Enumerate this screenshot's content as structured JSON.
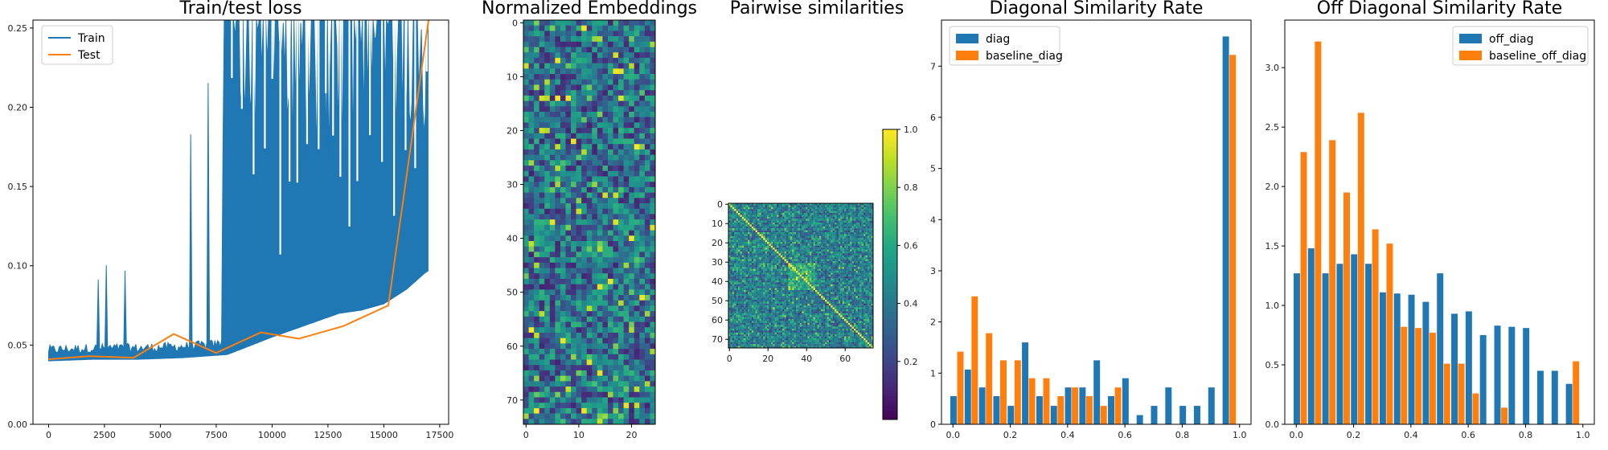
{
  "colors": {
    "train": "#1f77b4",
    "test": "#ff7f0e",
    "frame": "#000000"
  },
  "chart_data": [
    {
      "type": "line",
      "title": "Train/test loss",
      "xlim": [
        -700,
        17900
      ],
      "ylim": [
        0,
        0.255
      ],
      "x_ticks": [
        0,
        2500,
        5000,
        7500,
        10000,
        12500,
        15000,
        17500
      ],
      "y_ticks": [
        0.0,
        0.05,
        0.1,
        0.15,
        0.2,
        0.25
      ],
      "x_tick_labels": [
        "0",
        "2500",
        "5000",
        "7500",
        "10000",
        "12500",
        "15000",
        "17500"
      ],
      "y_tick_labels": [
        "0.00",
        "0.05",
        "0.10",
        "0.15",
        "0.20",
        "0.25"
      ],
      "legend": {
        "position": "upper-left",
        "entries": [
          "Train",
          "Test"
        ]
      },
      "series": [
        {
          "name": "Train",
          "x": [
            0,
            2000,
            4000,
            6000,
            8000,
            10000,
            11000,
            12000,
            13000,
            14000,
            15000,
            16000,
            16800,
            17000
          ],
          "y": [
            0.04,
            0.041,
            0.041,
            0.042,
            0.044,
            0.055,
            0.06,
            0.065,
            0.07,
            0.072,
            0.076,
            0.085,
            0.095,
            0.097
          ],
          "y_max": [
            0.05,
            0.1,
            0.14,
            0.255,
            0.255,
            0.255,
            0.255,
            0.255,
            0.255,
            0.255,
            0.255,
            0.255,
            0.255,
            0.255
          ]
        },
        {
          "name": "Test",
          "x": [
            0,
            1800,
            3800,
            5600,
            7500,
            9500,
            11200,
            13200,
            15200,
            17000
          ],
          "y": [
            0.041,
            0.043,
            0.042,
            0.057,
            0.045,
            0.058,
            0.054,
            0.062,
            0.075,
            0.255
          ]
        }
      ]
    },
    {
      "type": "heatmap",
      "title": "Normalized Embeddings",
      "rows": 75,
      "cols": 25,
      "colormap": "viridis",
      "x_ticks": [
        0,
        10,
        20
      ],
      "y_ticks": [
        0,
        10,
        20,
        30,
        40,
        50,
        60,
        70
      ],
      "x_tick_labels": [
        "0",
        "10",
        "20"
      ],
      "y_tick_labels": [
        "0",
        "10",
        "20",
        "30",
        "40",
        "50",
        "60",
        "70"
      ]
    },
    {
      "type": "heatmap",
      "title": "Pairwise similarities",
      "rows": 75,
      "cols": 75,
      "colormap": "viridis",
      "x_ticks": [
        0,
        20,
        40,
        60
      ],
      "y_ticks": [
        0,
        10,
        20,
        30,
        40,
        50,
        60,
        70
      ],
      "x_tick_labels": [
        "0",
        "20",
        "40",
        "60"
      ],
      "y_tick_labels": [
        "0",
        "10",
        "20",
        "30",
        "40",
        "50",
        "60",
        "70"
      ],
      "colorbar_ticks": [
        0.2,
        0.4,
        0.6,
        0.8,
        1.0
      ],
      "colorbar_tick_labels": [
        "0.2",
        "0.4",
        "0.6",
        "0.8",
        "1.0"
      ],
      "colorbar_range": [
        0.0,
        1.0
      ]
    },
    {
      "type": "bar",
      "title": "Diagonal Similarity Rate",
      "xlim": [
        -0.04,
        1.04
      ],
      "ylim": [
        0,
        7.9
      ],
      "x_ticks": [
        0.0,
        0.2,
        0.4,
        0.6,
        0.8,
        1.0
      ],
      "y_ticks": [
        0,
        1,
        2,
        3,
        4,
        5,
        6,
        7
      ],
      "x_tick_labels": [
        "0.0",
        "0.2",
        "0.4",
        "0.6",
        "0.8",
        "1.0"
      ],
      "y_tick_labels": [
        "0",
        "1",
        "2",
        "3",
        "4",
        "5",
        "6",
        "7"
      ],
      "legend": {
        "position": "upper-left",
        "entries": [
          "diag",
          "baseline_diag"
        ]
      },
      "x": [
        0.0,
        0.05,
        0.1,
        0.15,
        0.2,
        0.25,
        0.3,
        0.35,
        0.4,
        0.45,
        0.5,
        0.55,
        0.6,
        0.65,
        0.7,
        0.75,
        0.8,
        0.85,
        0.9,
        0.95
      ],
      "series": [
        {
          "name": "diag",
          "values": [
            0.55,
            1.07,
            0.72,
            0.55,
            0.36,
            1.6,
            0.55,
            0.36,
            0.72,
            0.72,
            1.25,
            0.55,
            0.9,
            0.18,
            0.36,
            0.72,
            0.36,
            0.36,
            0.72,
            7.58
          ]
        },
        {
          "name": "baseline_diag",
          "values": [
            1.42,
            2.5,
            1.78,
            1.25,
            1.25,
            0.9,
            0.9,
            0.55,
            0.72,
            0.55,
            0.36,
            0.72,
            0,
            0,
            0,
            0,
            0,
            0,
            0,
            7.22
          ]
        }
      ]
    },
    {
      "type": "bar",
      "title": "Off Diagonal Similarity Rate",
      "xlim": [
        -0.04,
        1.04
      ],
      "ylim": [
        0,
        3.4
      ],
      "x_ticks": [
        0.0,
        0.2,
        0.4,
        0.6,
        0.8,
        1.0
      ],
      "y_ticks": [
        0.0,
        0.5,
        1.0,
        1.5,
        2.0,
        2.5,
        3.0
      ],
      "x_tick_labels": [
        "0.0",
        "0.2",
        "0.4",
        "0.6",
        "0.8",
        "1.0"
      ],
      "y_tick_labels": [
        "0.0",
        "0.5",
        "1.0",
        "1.5",
        "2.0",
        "2.5",
        "3.0"
      ],
      "legend": {
        "position": "upper-right",
        "entries": [
          "off_diag",
          "baseline_off_diag"
        ]
      },
      "x": [
        0.0,
        0.05,
        0.1,
        0.15,
        0.2,
        0.25,
        0.3,
        0.35,
        0.4,
        0.45,
        0.5,
        0.55,
        0.6,
        0.65,
        0.7,
        0.75,
        0.8,
        0.85,
        0.9,
        0.95
      ],
      "series": [
        {
          "name": "off_diag",
          "values": [
            1.27,
            1.48,
            1.27,
            1.35,
            1.43,
            1.35,
            1.11,
            1.1,
            1.09,
            1.03,
            1.27,
            0.93,
            0.95,
            0.75,
            0.83,
            0.82,
            0.81,
            0.45,
            0.45,
            0.34
          ]
        },
        {
          "name": "baseline_off_diag",
          "values": [
            2.29,
            3.22,
            2.39,
            1.95,
            2.62,
            1.64,
            1.52,
            0.82,
            0.81,
            0.77,
            0.51,
            0.51,
            0.26,
            0,
            0.14,
            0,
            0,
            0,
            0,
            0.53
          ]
        }
      ]
    }
  ]
}
